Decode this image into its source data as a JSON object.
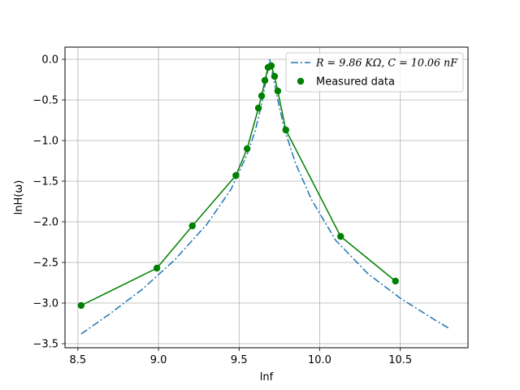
{
  "chart_data": {
    "type": "line",
    "xlabel": "lnf",
    "ylabel": "lnH(ω)",
    "xlim": [
      8.42,
      10.92
    ],
    "ylim": [
      -3.55,
      0.15
    ],
    "xticks": [
      8.5,
      9.0,
      9.5,
      10.0,
      10.5
    ],
    "xtick_labels": [
      "8.5",
      "9.0",
      "9.5",
      "10.0",
      "10.5"
    ],
    "yticks": [
      0.0,
      -0.5,
      -1.0,
      -1.5,
      -2.0,
      -2.5,
      -3.0,
      -3.5
    ],
    "ytick_labels": [
      "0.0",
      "−0.5",
      "−1.0",
      "−1.5",
      "−2.0",
      "−2.5",
      "−3.0",
      "−3.5"
    ],
    "grid": true,
    "legend_position": "top-right",
    "series": [
      {
        "name": "R = 9.86 KΩ, C = 10.06 nF",
        "style": "dashdot",
        "color": "#1f77b4",
        "x": [
          8.52,
          8.7,
          8.9,
          9.1,
          9.3,
          9.45,
          9.55,
          9.6,
          9.64,
          9.67,
          9.69,
          9.71,
          9.74,
          9.78,
          9.85,
          9.95,
          10.1,
          10.3,
          10.5,
          10.7,
          10.81
        ],
        "y": [
          -3.38,
          -3.13,
          -2.83,
          -2.47,
          -2.03,
          -1.6,
          -1.17,
          -0.88,
          -0.55,
          -0.22,
          0.0,
          -0.2,
          -0.5,
          -0.85,
          -1.28,
          -1.73,
          -2.23,
          -2.64,
          -2.94,
          -3.19,
          -3.32
        ]
      },
      {
        "name": "Measured data",
        "style": "line-marker",
        "color": "#008000",
        "x": [
          8.52,
          8.99,
          9.21,
          9.48,
          9.55,
          9.62,
          9.64,
          9.66,
          9.68,
          9.7,
          9.72,
          9.74,
          9.79,
          10.13,
          10.47
        ],
        "y": [
          -3.03,
          -2.57,
          -2.05,
          -1.43,
          -1.1,
          -0.6,
          -0.45,
          -0.26,
          -0.1,
          -0.08,
          -0.21,
          -0.39,
          -0.87,
          -2.18,
          -2.73
        ]
      }
    ],
    "legend_labels": [
      "R = 9.86 KΩ, C = 10.06 nF",
      "Measured data"
    ]
  }
}
